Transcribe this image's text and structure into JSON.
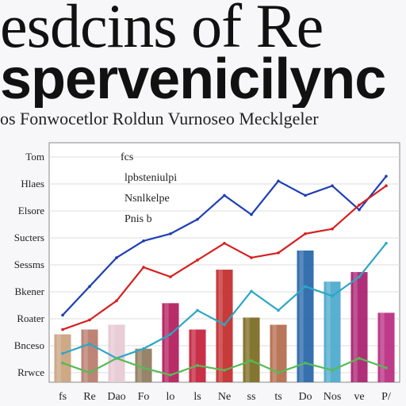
{
  "title_line1": "esdcins of Re",
  "title_line2": "spervenicilync",
  "subtitle": "os Fonwocetlor Roldun Vurnoseo Mecklgeler",
  "colors": {
    "grid": "#dcdcdc",
    "plot_border": "#888888",
    "text": "#222222"
  },
  "chart_data": {
    "type": "bar",
    "title": "",
    "xlabel": "",
    "ylabel": "",
    "ylim": [
      0,
      100
    ],
    "y_tick_labels": [
      "Tom",
      "Hlaes",
      "Elsore",
      "Sucters",
      "Sessms",
      "Bkener",
      "Roater",
      "Bnceso",
      "Rrwce"
    ],
    "x_tick_labels": [
      "fs",
      "Re",
      "Dao",
      "Fo",
      "lo",
      "ls",
      "Ne",
      "ss",
      "ts",
      "Do",
      "Nos",
      "ve",
      "P/"
    ],
    "annotations": [
      "fcs",
      "lpbsteniulpi",
      "Nsnlkelpe",
      "Pnis b"
    ],
    "bars": [
      {
        "label": "fs",
        "value": 20,
        "color": "#c9a27e"
      },
      {
        "label": "Re",
        "value": 22,
        "color": "#b77a6a"
      },
      {
        "label": "Dao",
        "value": 24,
        "color": "#e6c8d2"
      },
      {
        "label": "Fo",
        "value": 14,
        "color": "#8e7a5c"
      },
      {
        "label": "lo",
        "value": 33,
        "color": "#b21a5a"
      },
      {
        "label": "ls",
        "value": 22,
        "color": "#c4203a"
      },
      {
        "label": "Ne",
        "value": 47,
        "color": "#c22a2a"
      },
      {
        "label": "ss",
        "value": 27,
        "color": "#7a6a1e"
      },
      {
        "label": "ts",
        "value": 24,
        "color": "#b46a4a"
      },
      {
        "label": "Do",
        "value": 55,
        "color": "#2565a8"
      },
      {
        "label": "Nos",
        "value": 42,
        "color": "#4aa8cc"
      },
      {
        "label": "ve",
        "value": 46,
        "color": "#a81e6e"
      },
      {
        "label": "P/",
        "value": 29,
        "color": "#b82a80"
      }
    ],
    "series": [
      {
        "color": "#1f3fb3",
        "x": [
          0,
          1,
          2,
          3,
          4,
          5,
          6,
          7,
          8,
          9,
          10,
          11,
          12
        ],
        "y": [
          28,
          40,
          52,
          59,
          62,
          68,
          78,
          70,
          84,
          78,
          82,
          72,
          86
        ]
      },
      {
        "color": "#d62020",
        "x": [
          0,
          1,
          2,
          3,
          4,
          5,
          6,
          7,
          8,
          9,
          10,
          11,
          12
        ],
        "y": [
          22,
          26,
          34,
          48,
          44,
          51,
          58,
          52,
          54,
          62,
          64,
          74,
          82
        ]
      },
      {
        "color": "#2ba7c5",
        "x": [
          0,
          1,
          2,
          3,
          4,
          5,
          6,
          7,
          8,
          9,
          10,
          11,
          12
        ],
        "y": [
          12,
          16,
          10,
          14,
          20,
          30,
          24,
          38,
          30,
          40,
          36,
          44,
          58
        ]
      },
      {
        "color": "#55bb55",
        "x": [
          0,
          1,
          2,
          3,
          4,
          5,
          6,
          7,
          8,
          9,
          10,
          11,
          12
        ],
        "y": [
          8,
          4,
          10,
          6,
          3,
          7,
          5,
          9,
          4,
          8,
          5,
          10,
          6
        ]
      }
    ]
  }
}
